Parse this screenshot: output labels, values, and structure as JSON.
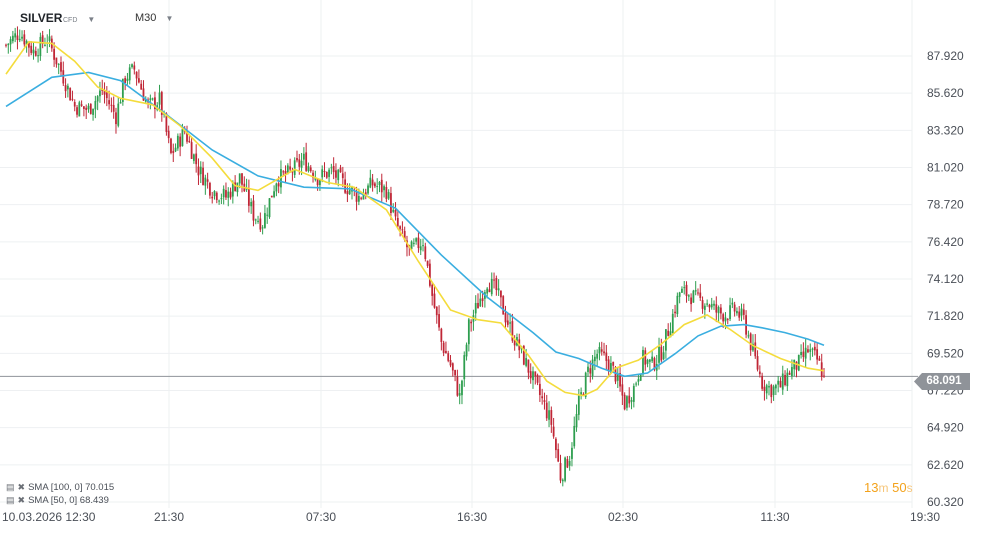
{
  "header": {
    "symbol": "SILVER",
    "instrument_type": "CFD",
    "timeframe": "M30",
    "caret": "▼"
  },
  "last_price": "68.091",
  "countdown": {
    "minutes": "13",
    "minutes_unit": "m",
    "seconds": "50",
    "seconds_unit": "s"
  },
  "indicators": [
    {
      "label": "SMA [100, 0] 70.015",
      "color": "#3aaee0"
    },
    {
      "label": "SMA [50, 0] 68.439",
      "color": "#f4dc3c"
    }
  ],
  "colors": {
    "up": "#2e9e4f",
    "down": "#c02636",
    "sma100": "#3aaee0",
    "sma50": "#f4dc3c",
    "price_line": "#8f9399"
  },
  "chart_data": {
    "type": "candlestick",
    "title": "SILVER CFD M30",
    "ylim": [
      60.32,
      90.22
    ],
    "y_ticks": [
      "87.920",
      "85.620",
      "83.320",
      "81.020",
      "78.720",
      "76.420",
      "74.120",
      "71.820",
      "69.520",
      "67.220",
      "64.920",
      "62.620",
      "60.320"
    ],
    "x_ticks": [
      "10.03.2026 12:30",
      "21:30",
      "07:30",
      "16:30",
      "02:30",
      "11:30",
      "19:30"
    ],
    "grid": true,
    "last_price": 68.091,
    "price_path": [
      [
        0,
        88.6
      ],
      [
        6,
        89.4
      ],
      [
        12,
        88.2
      ],
      [
        18,
        89.0
      ],
      [
        24,
        87.0
      ],
      [
        30,
        84.8
      ],
      [
        36,
        84.6
      ],
      [
        42,
        85.8
      ],
      [
        48,
        84.2
      ],
      [
        52,
        86.6
      ],
      [
        56,
        87.1
      ],
      [
        62,
        84.8
      ],
      [
        67,
        85.2
      ],
      [
        72,
        81.8
      ],
      [
        78,
        83.3
      ],
      [
        84,
        80.9
      ],
      [
        90,
        79.6
      ],
      [
        96,
        79.2
      ],
      [
        102,
        80.4
      ],
      [
        108,
        78.1
      ],
      [
        112,
        77.6
      ],
      [
        118,
        80.3
      ],
      [
        124,
        80.7
      ],
      [
        130,
        81.5
      ],
      [
        136,
        80.4
      ],
      [
        142,
        80.8
      ],
      [
        148,
        79.9
      ],
      [
        154,
        79.2
      ],
      [
        160,
        80.0
      ],
      [
        166,
        79.6
      ],
      [
        170,
        77.6
      ],
      [
        176,
        75.8
      ],
      [
        182,
        76.5
      ],
      [
        186,
        73.1
      ],
      [
        190,
        70.2
      ],
      [
        194,
        68.8
      ],
      [
        198,
        66.8
      ],
      [
        202,
        71.2
      ],
      [
        206,
        72.6
      ],
      [
        210,
        74.0
      ],
      [
        214,
        73.4
      ],
      [
        218,
        71.8
      ],
      [
        222,
        70.4
      ],
      [
        226,
        69.2
      ],
      [
        230,
        67.9
      ],
      [
        234,
        66.6
      ],
      [
        238,
        65.2
      ],
      [
        242,
        61.9
      ],
      [
        246,
        63.2
      ],
      [
        250,
        66.4
      ],
      [
        254,
        68.4
      ],
      [
        258,
        69.5
      ],
      [
        262,
        69.1
      ],
      [
        266,
        68.2
      ],
      [
        270,
        66.4
      ],
      [
        274,
        67.4
      ],
      [
        278,
        69.2
      ],
      [
        282,
        68.8
      ],
      [
        286,
        69.6
      ],
      [
        290,
        71.4
      ],
      [
        294,
        73.3
      ],
      [
        298,
        73.2
      ],
      [
        302,
        72.8
      ],
      [
        306,
        72.7
      ],
      [
        310,
        72.1
      ],
      [
        314,
        71.9
      ],
      [
        318,
        72.2
      ],
      [
        322,
        71.6
      ],
      [
        326,
        69.6
      ],
      [
        330,
        67.7
      ],
      [
        334,
        67.3
      ],
      [
        338,
        67.5
      ],
      [
        342,
        68.4
      ],
      [
        346,
        68.9
      ],
      [
        350,
        69.7
      ],
      [
        354,
        69.1
      ],
      [
        357,
        68.091
      ]
    ],
    "sma100": [
      [
        0,
        84.8
      ],
      [
        20,
        86.6
      ],
      [
        36,
        86.9
      ],
      [
        50,
        86.4
      ],
      [
        70,
        84.3
      ],
      [
        90,
        82.1
      ],
      [
        110,
        80.5
      ],
      [
        130,
        79.8
      ],
      [
        150,
        79.7
      ],
      [
        170,
        78.5
      ],
      [
        190,
        75.6
      ],
      [
        210,
        73.0
      ],
      [
        230,
        70.8
      ],
      [
        240,
        69.6
      ],
      [
        250,
        69.2
      ],
      [
        260,
        68.6
      ],
      [
        270,
        68.1
      ],
      [
        280,
        68.3
      ],
      [
        292,
        69.5
      ],
      [
        302,
        70.6
      ],
      [
        312,
        71.2
      ],
      [
        322,
        71.3
      ],
      [
        330,
        71.1
      ],
      [
        340,
        70.8
      ],
      [
        350,
        70.4
      ],
      [
        357,
        70.015
      ]
    ],
    "sma50": [
      [
        0,
        86.8
      ],
      [
        10,
        88.8
      ],
      [
        20,
        88.7
      ],
      [
        30,
        87.6
      ],
      [
        40,
        86.0
      ],
      [
        50,
        85.3
      ],
      [
        64,
        84.9
      ],
      [
        76,
        83.6
      ],
      [
        90,
        81.6
      ],
      [
        100,
        79.9
      ],
      [
        110,
        79.6
      ],
      [
        126,
        80.9
      ],
      [
        140,
        80.1
      ],
      [
        152,
        79.8
      ],
      [
        166,
        78.4
      ],
      [
        180,
        75.2
      ],
      [
        194,
        72.2
      ],
      [
        206,
        71.6
      ],
      [
        216,
        71.4
      ],
      [
        228,
        69.4
      ],
      [
        236,
        67.8
      ],
      [
        244,
        67.1
      ],
      [
        252,
        66.9
      ],
      [
        258,
        67.3
      ],
      [
        266,
        68.6
      ],
      [
        276,
        69.1
      ],
      [
        286,
        70.1
      ],
      [
        296,
        71.3
      ],
      [
        306,
        71.9
      ],
      [
        316,
        71.0
      ],
      [
        326,
        70.0
      ],
      [
        338,
        69.2
      ],
      [
        350,
        68.6
      ],
      [
        357,
        68.439
      ]
    ]
  }
}
